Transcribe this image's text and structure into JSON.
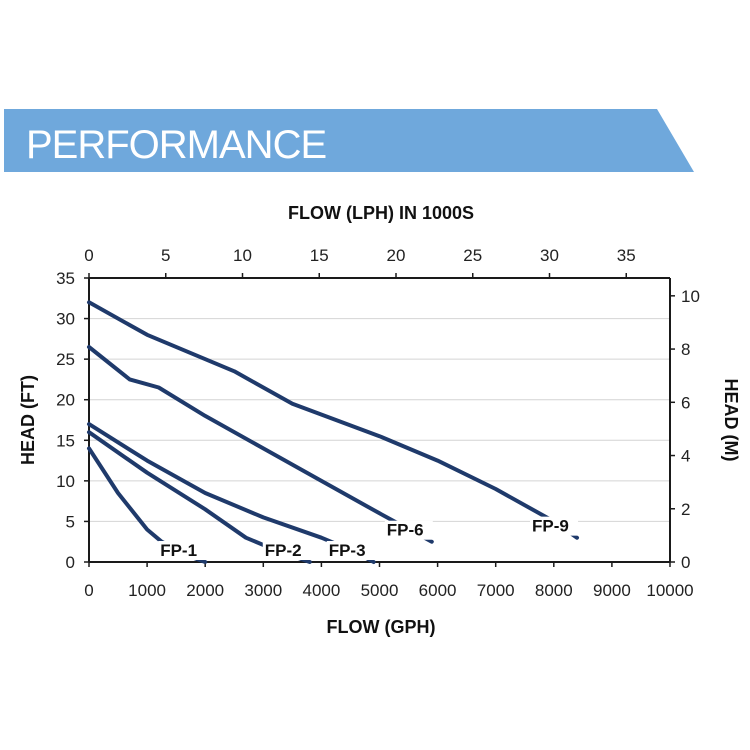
{
  "banner": {
    "title": "PERFORMANCE",
    "color": "#6fa8dc"
  },
  "chart_data": {
    "type": "line",
    "title": "",
    "xlabel": "FLOW (GPH)",
    "x2label": "FLOW (LPH) IN 1000S",
    "ylabel": "HEAD (FT)",
    "y2label": "HEAD (M)",
    "xlim": [
      0,
      10000
    ],
    "x2lim": [
      0,
      37.85
    ],
    "ylim": [
      0,
      35
    ],
    "y2lim": [
      0,
      10.67
    ],
    "x_ticks": [
      "0",
      "1000",
      "2000",
      "3000",
      "4000",
      "5000",
      "6000",
      "7000",
      "8000",
      "9000",
      "10000"
    ],
    "x2_ticks": [
      "0",
      "5",
      "10",
      "15",
      "20",
      "25",
      "30",
      "35"
    ],
    "y_ticks": [
      "0",
      "5",
      "10",
      "15",
      "20",
      "25",
      "30",
      "35"
    ],
    "y2_ticks": [
      "0",
      "2",
      "4",
      "6",
      "8",
      "10"
    ],
    "grid": true,
    "line_color": "#1f3a6b",
    "series": [
      {
        "name": "FP-1",
        "x": [
          0,
          500,
          1000,
          1250,
          1800,
          2000
        ],
        "y": [
          14,
          8.5,
          4,
          2.5,
          0.5,
          0
        ]
      },
      {
        "name": "FP-2",
        "x": [
          0,
          1000,
          2000,
          2700,
          3200,
          3800
        ],
        "y": [
          16,
          11,
          6.5,
          3,
          1.5,
          0
        ]
      },
      {
        "name": "FP-3",
        "x": [
          0,
          1000,
          2000,
          3000,
          4000,
          4500,
          4900
        ],
        "y": [
          17,
          12.5,
          8.5,
          5.5,
          3,
          1.5,
          0
        ]
      },
      {
        "name": "FP-6",
        "x": [
          0,
          700,
          1200,
          2000,
          3000,
          4000,
          5000,
          5900
        ],
        "y": [
          26.5,
          22.5,
          21.5,
          18,
          14,
          10,
          6,
          2.5
        ]
      },
      {
        "name": "FP-9",
        "x": [
          0,
          1000,
          2500,
          3500,
          5000,
          6000,
          7000,
          8000,
          8400
        ],
        "y": [
          32,
          28,
          23.5,
          19.5,
          15.5,
          12.5,
          9,
          5,
          3
        ]
      }
    ]
  }
}
